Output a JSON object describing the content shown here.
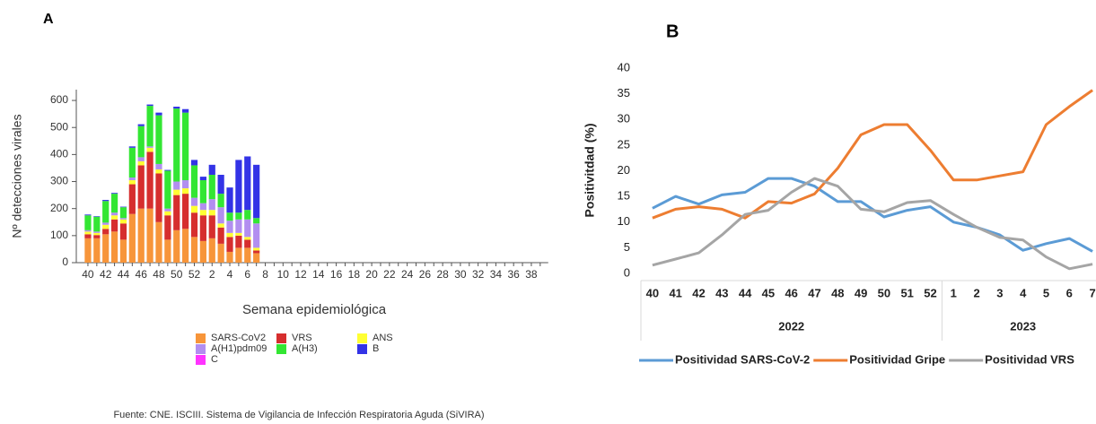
{
  "chart_data": [
    {
      "type": "bar",
      "panel_label": "A",
      "xlabel": "Semana epidemiológica",
      "ylabel": "Nº detecciones virales",
      "source": "Fuente: CNE. ISCIII. Sistema de Vigilancia de Infección Respiratoria Aguda (SiVIRA)",
      "stacked": true,
      "categories": [
        "40",
        null,
        "42",
        null,
        "44",
        null,
        "46",
        null,
        "48",
        null,
        "50",
        null,
        "52",
        null,
        "2",
        null,
        "4",
        null,
        "6",
        null,
        "8",
        null,
        "10",
        null,
        "12",
        null,
        "14",
        null,
        "16",
        null,
        "18",
        null,
        "20",
        null,
        "22",
        null,
        "24",
        null,
        "26",
        null,
        "28",
        null,
        "30",
        null,
        "32",
        null,
        "34",
        null,
        "36",
        null,
        "38",
        null
      ],
      "ylim": [
        0,
        640
      ],
      "yticks": [
        0,
        100,
        200,
        300,
        400,
        500,
        600
      ],
      "series": [
        {
          "name": "SARS-CoV2",
          "color": "#f7953a",
          "values": [
            90,
            90,
            105,
            115,
            85,
            180,
            200,
            200,
            150,
            85,
            120,
            125,
            95,
            80,
            90,
            70,
            40,
            55,
            55,
            35,
            null,
            null,
            null,
            null,
            null,
            null,
            null,
            null,
            null,
            null,
            null,
            null,
            null,
            null,
            null,
            null,
            null,
            null,
            null,
            null,
            null,
            null,
            null,
            null,
            null,
            null,
            null,
            null,
            null,
            null,
            null,
            null
          ]
        },
        {
          "name": "VRS",
          "color": "#d62e2e",
          "values": [
            15,
            12,
            20,
            45,
            60,
            110,
            160,
            210,
            180,
            90,
            130,
            130,
            90,
            95,
            85,
            60,
            55,
            45,
            30,
            10,
            null,
            null,
            null,
            null,
            null,
            null,
            null,
            null,
            null,
            null,
            null,
            null,
            null,
            null,
            null,
            null,
            null,
            null,
            null,
            null,
            null,
            null,
            null,
            null,
            null,
            null,
            null,
            null,
            null,
            null,
            null,
            null
          ]
        },
        {
          "name": "ANS",
          "color": "#ffff33",
          "values": [
            10,
            8,
            15,
            15,
            15,
            15,
            15,
            15,
            15,
            15,
            20,
            20,
            25,
            20,
            20,
            15,
            15,
            10,
            10,
            10,
            null,
            null,
            null,
            null,
            null,
            null,
            null,
            null,
            null,
            null,
            null,
            null,
            null,
            null,
            null,
            null,
            null,
            null,
            null,
            null,
            null,
            null,
            null,
            null,
            null,
            null,
            null,
            null,
            null,
            null,
            null,
            null
          ]
        },
        {
          "name": "A(H1)pdm09",
          "color": "#b28ef0",
          "values": [
            5,
            5,
            8,
            10,
            5,
            10,
            15,
            5,
            20,
            10,
            30,
            30,
            30,
            25,
            40,
            60,
            45,
            50,
            65,
            90,
            null,
            null,
            null,
            null,
            null,
            null,
            null,
            null,
            null,
            null,
            null,
            null,
            null,
            null,
            null,
            null,
            null,
            null,
            null,
            null,
            null,
            null,
            null,
            null,
            null,
            null,
            null,
            null,
            null,
            null,
            null,
            null
          ]
        },
        {
          "name": "A(H3)",
          "color": "#33e633",
          "values": [
            55,
            55,
            80,
            70,
            40,
            110,
            115,
            150,
            180,
            140,
            270,
            250,
            120,
            85,
            90,
            50,
            30,
            25,
            35,
            20,
            null,
            null,
            null,
            null,
            null,
            null,
            null,
            null,
            null,
            null,
            null,
            null,
            null,
            null,
            null,
            null,
            null,
            null,
            null,
            null,
            null,
            null,
            null,
            null,
            null,
            null,
            null,
            null,
            null,
            null,
            null,
            null
          ]
        },
        {
          "name": "B",
          "color": "#3333e6",
          "values": [
            3,
            2,
            4,
            3,
            2,
            5,
            7,
            5,
            10,
            3,
            7,
            13,
            20,
            13,
            37,
            70,
            93,
            195,
            198,
            197,
            null,
            null,
            null,
            null,
            null,
            null,
            null,
            null,
            null,
            null,
            null,
            null,
            null,
            null,
            null,
            null,
            null,
            null,
            null,
            null,
            null,
            null,
            null,
            null,
            null,
            null,
            null,
            null,
            null,
            null,
            null,
            null
          ]
        },
        {
          "name": "C",
          "color": "#ff33ff",
          "values": [
            0,
            0,
            0,
            0,
            0,
            0,
            0,
            0,
            0,
            0,
            0,
            0,
            0,
            0,
            0,
            0,
            0,
            0,
            0,
            0,
            null,
            null,
            null,
            null,
            null,
            null,
            null,
            null,
            null,
            null,
            null,
            null,
            null,
            null,
            null,
            null,
            null,
            null,
            null,
            null,
            null,
            null,
            null,
            null,
            null,
            null,
            null,
            null,
            null,
            null,
            null,
            null
          ]
        }
      ]
    },
    {
      "type": "line",
      "panel_label": "B",
      "ylabel": "Positivitdad (%)",
      "category_groups": [
        {
          "name": "2022",
          "categories": [
            "40",
            "41",
            "42",
            "43",
            "44",
            "45",
            "46",
            "47",
            "48",
            "49",
            "50",
            "51",
            "52"
          ]
        },
        {
          "name": "2023",
          "categories": [
            "1",
            "2",
            "3",
            "4",
            "5",
            "6",
            "7"
          ]
        }
      ],
      "ylim": [
        0,
        40
      ],
      "yticks": [
        0,
        5,
        10,
        15,
        20,
        25,
        30,
        35,
        40
      ],
      "series": [
        {
          "name": "Positividad SARS-CoV-2",
          "color": "#5b9bd5",
          "values": [
            12.7,
            15,
            13.5,
            15.3,
            15.8,
            18.5,
            18.5,
            17,
            14,
            14,
            11,
            12.3,
            13,
            10,
            9,
            7.5,
            4.5,
            5.8,
            6.8,
            4.3
          ]
        },
        {
          "name": "Positividad Gripe",
          "color": "#ed7d31",
          "values": [
            10.8,
            12.5,
            13,
            12.5,
            10.8,
            14,
            13.7,
            15.5,
            20.5,
            27,
            29,
            29,
            24,
            18.2,
            18.2,
            19,
            19.8,
            29,
            32.5,
            35.7
          ]
        },
        {
          "name": "Positividad VRS",
          "color": "#a5a5a5",
          "values": [
            1.6,
            2.8,
            4,
            7.5,
            11.5,
            12.3,
            15.8,
            18.5,
            17,
            12.5,
            12,
            13.8,
            14.2,
            11.5,
            9,
            7,
            6.5,
            3.2,
            0.9,
            1.8
          ]
        }
      ]
    }
  ]
}
